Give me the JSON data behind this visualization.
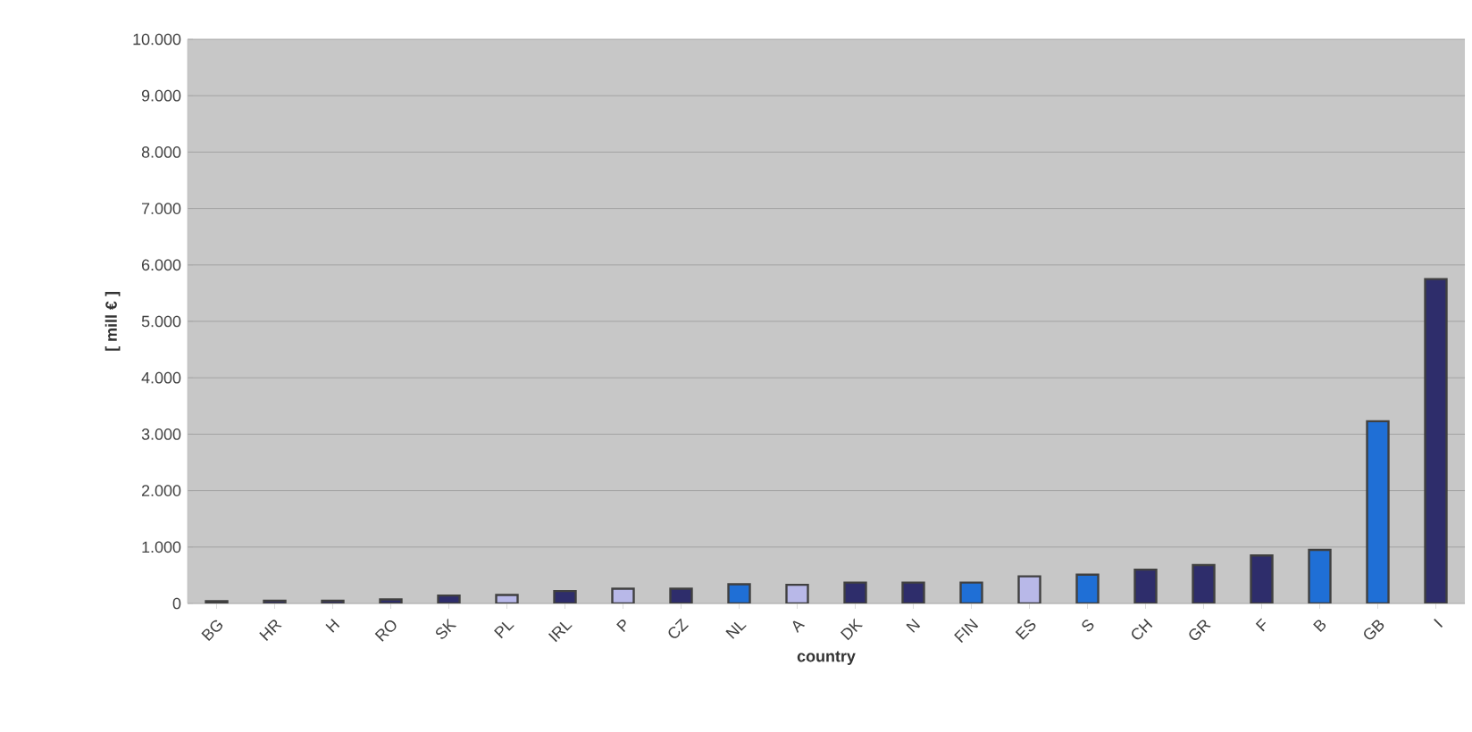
{
  "chart_data": {
    "type": "bar",
    "xlabel": "country",
    "ylabel": "[ mill € ]",
    "categories": [
      "BG",
      "HR",
      "H",
      "RO",
      "SK",
      "PL",
      "IRL",
      "P",
      "CZ",
      "NL",
      "A",
      "DK",
      "N",
      "FIN",
      "ES",
      "S",
      "CH",
      "GR",
      "F",
      "B",
      "GB",
      "I"
    ],
    "values": [
      40,
      50,
      50,
      70,
      140,
      150,
      220,
      260,
      260,
      340,
      330,
      370,
      370,
      370,
      480,
      510,
      600,
      680,
      850,
      950,
      3230,
      5750
    ],
    "colors": [
      "#2e2d6b",
      "#2e2d6b",
      "#2e2d6b",
      "#2e2d6b",
      "#2e2d6b",
      "#b8b8e8",
      "#2e2d6b",
      "#b8b8e8",
      "#2e2d6b",
      "#1f6fd6",
      "#b8b8e8",
      "#2e2d6b",
      "#2e2d6b",
      "#1f6fd6",
      "#b8b8e8",
      "#1f6fd6",
      "#2e2d6b",
      "#2e2d6b",
      "#2e2d6b",
      "#1f6fd6",
      "#1f6fd6",
      "#2e2d6b"
    ],
    "ylim": [
      0,
      10000
    ],
    "yticks": [
      {
        "value": 0,
        "label": "0"
      },
      {
        "value": 1000,
        "label": "1.000"
      },
      {
        "value": 2000,
        "label": "2.000"
      },
      {
        "value": 3000,
        "label": "3.000"
      },
      {
        "value": 4000,
        "label": "4.000"
      },
      {
        "value": 5000,
        "label": "5.000"
      },
      {
        "value": 6000,
        "label": "6.000"
      },
      {
        "value": 7000,
        "label": "7.000"
      },
      {
        "value": 8000,
        "label": "8.000"
      },
      {
        "value": 9000,
        "label": "9.000"
      },
      {
        "value": 10000,
        "label": "10.000"
      }
    ],
    "grid": "y"
  }
}
